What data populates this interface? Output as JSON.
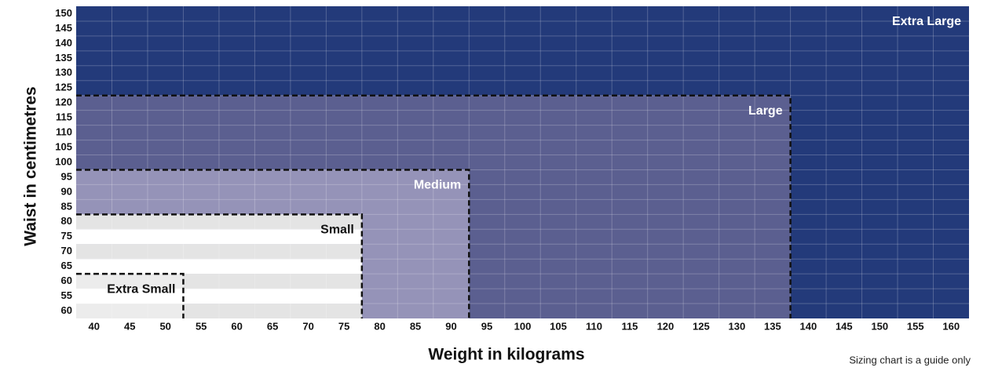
{
  "y_axis_title": "Waist in centimetres",
  "x_axis_title": "Weight in kilograms",
  "footnote": "Sizing chart is a guide only",
  "y_labels": [
    150,
    145,
    140,
    135,
    130,
    125,
    120,
    115,
    110,
    105,
    100,
    95,
    90,
    85,
    80,
    75,
    70,
    65,
    60,
    55,
    60
  ],
  "x_labels": [
    40,
    45,
    50,
    55,
    60,
    65,
    70,
    75,
    80,
    85,
    90,
    95,
    100,
    105,
    110,
    115,
    120,
    125,
    130,
    135,
    140,
    145,
    150,
    155,
    160
  ],
  "regions": [
    {
      "label": "Extra Large"
    },
    {
      "label": "Large"
    },
    {
      "label": "Medium"
    },
    {
      "label": "Small"
    },
    {
      "label": "Extra Small"
    }
  ]
}
